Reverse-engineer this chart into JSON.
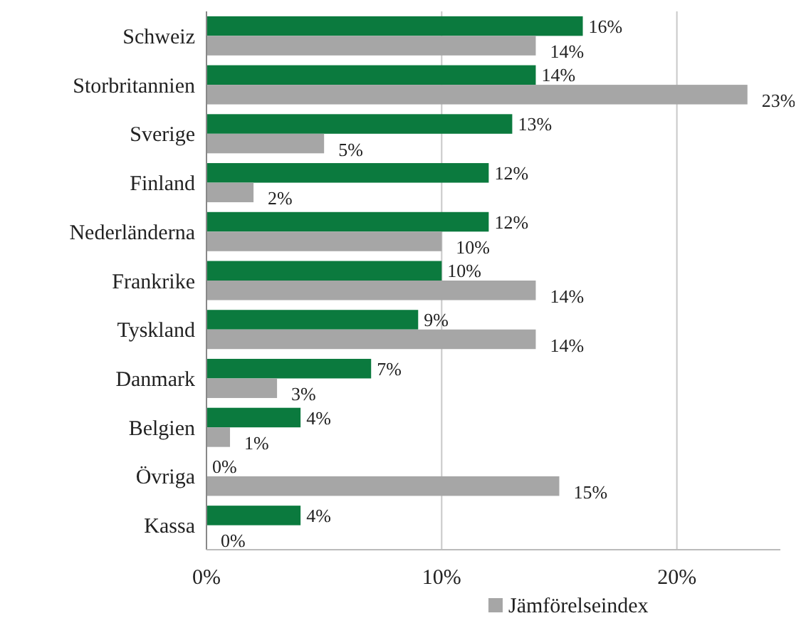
{
  "chart_data": {
    "type": "bar",
    "orientation": "horizontal",
    "categories": [
      "Schweiz",
      "Storbritannien",
      "Sverige",
      "Finland",
      "Nederländerna",
      "Frankrike",
      "Tyskland",
      "Danmark",
      "Belgien",
      "Övriga",
      "Kassa"
    ],
    "series": [
      {
        "color": "#0b7a3e",
        "values": [
          16,
          14,
          13,
          12,
          12,
          10,
          9,
          7,
          4,
          0,
          4
        ],
        "value_labels": [
          "16%",
          "14%",
          "13%",
          "12%",
          "12%",
          "10%",
          "9%",
          "7%",
          "4%",
          "0%",
          "4%"
        ]
      },
      {
        "name": "Jämförelseindex",
        "color": "#a6a6a6",
        "values": [
          14,
          23,
          5,
          2,
          10,
          14,
          14,
          3,
          1,
          15,
          0
        ],
        "value_labels": [
          "14%",
          "23%",
          "5%",
          "2%",
          "10%",
          "14%",
          "14%",
          "3%",
          "1%",
          "15%",
          "0%"
        ]
      }
    ],
    "xlim": [
      0,
      24.4
    ],
    "xticks": [
      {
        "value": 0,
        "label": "0%"
      },
      {
        "value": 10,
        "label": "10%"
      },
      {
        "value": 20,
        "label": "20%"
      }
    ],
    "grid": "x",
    "legend": "bottom"
  }
}
